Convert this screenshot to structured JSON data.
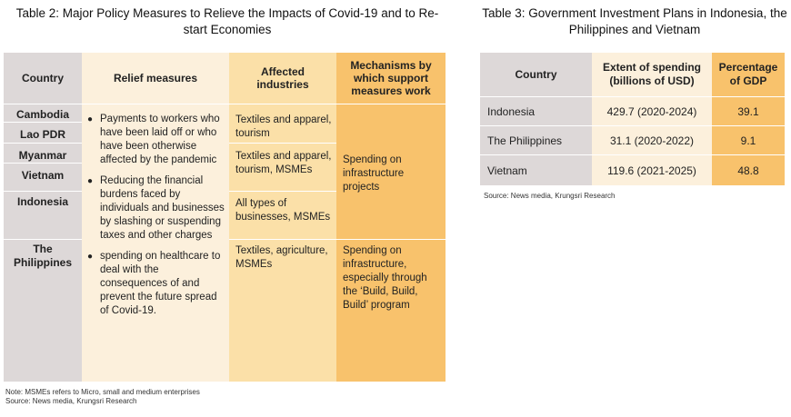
{
  "table2": {
    "title": "Table 2: Major Policy Measures to Relieve the Impacts of Covid-19 and to Re-start Economies",
    "headers": {
      "country": "Country",
      "relief": "Relief measures",
      "affected": "Affected industries",
      "mechanisms": "Mechanisms by which support measures work"
    },
    "countries": [
      "Cambodia",
      "Lao PDR",
      "Myanmar",
      "Vietnam",
      "Indonesia",
      "The Philippines"
    ],
    "relief_measures": [
      "Payments to workers who have been laid off or who have been otherwise affected by the pandemic",
      "Reducing the financial burdens faced by individuals and businesses by slashing or suspending taxes and other charges",
      "spending on healthcare to deal with the consequences of and prevent the future spread of Covid-19."
    ],
    "affected": [
      "Textiles and apparel, tourism",
      "Textiles and apparel, tourism, MSMEs",
      "All types of businesses, MSMEs",
      "Textiles, agriculture, MSMEs"
    ],
    "mechanisms": [
      "Spending on infrastructure projects",
      "Spending on infrastructure, especially through the ‘Build, Build, Build’ program"
    ],
    "note": "Note: MSMEs refers to Micro, small and medium enterprises",
    "source": "Source: News media, Krungsri Research"
  },
  "table3": {
    "title": "Table 3: Government Investment Plans in Indonesia, the Philippines and Vietnam",
    "headers": {
      "country": "Country",
      "spending": "Extent of spending (billions of USD)",
      "gdp": "Percentage of GDP"
    },
    "rows": [
      {
        "country": "Indonesia",
        "spending": "429.7 (2020-2024)",
        "gdp": "39.1"
      },
      {
        "country": "The Philippines",
        "spending": "31.1 (2020-2022)",
        "gdp": "9.1"
      },
      {
        "country": "Vietnam",
        "spending": "119.6 (2021-2025)",
        "gdp": "48.8"
      }
    ],
    "source": "Source: News media, Krungsri Research"
  },
  "colors": {
    "country_col": "#ddd8d8",
    "relief_col": "#fcf0dc",
    "affected_col": "#fbe0a8",
    "mechanism_col": "#f8c26c"
  }
}
